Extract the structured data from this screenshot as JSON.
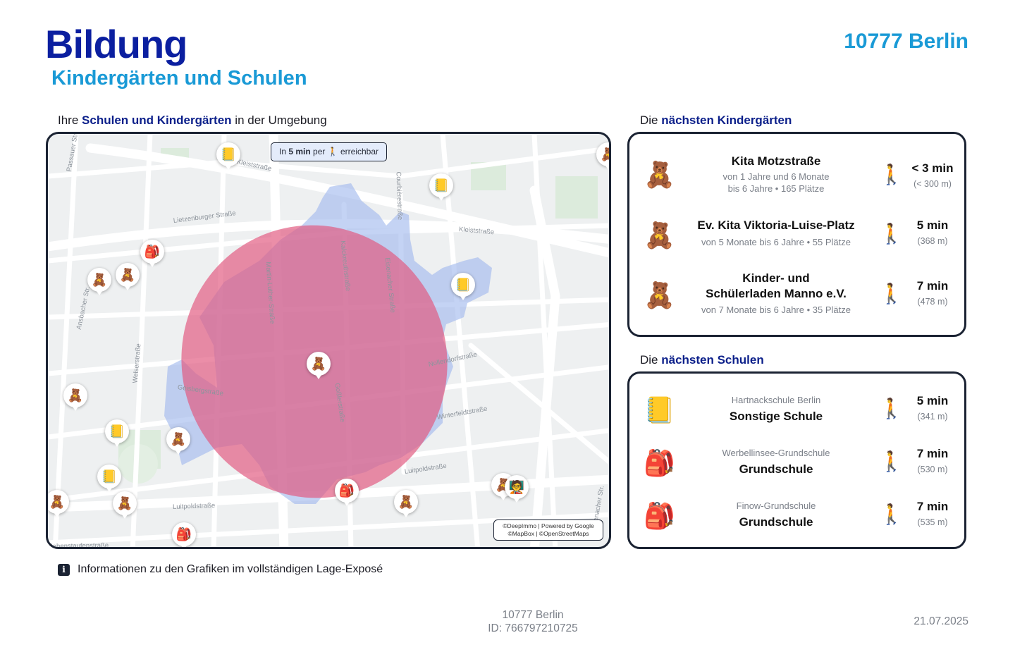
{
  "header": {
    "title": "Bildung",
    "subtitle": "Kindergärten und Schulen",
    "city": "10777 Berlin"
  },
  "map_section": {
    "label_pre": "Ihre ",
    "label_bold": "Schulen und Kindergärten",
    "label_post": " in der Umgebung",
    "reach_pre": "In ",
    "reach_bold": "5 min",
    "reach_mid": " per ",
    "reach_post": " erreichbar",
    "attribution_line1": "©DeepImmo | Powered by Google",
    "attribution_line2": "©MapBox | ©OpenStreetMaps",
    "streets": [
      "Kleiststraße",
      "Lietzenburger Straße",
      "Kleiststraße",
      "Passauer Straße",
      "Courbièrestraße",
      "Martin-Luther-Straße",
      "Kalckreuthstraße",
      "Eisenacher Straße",
      "Ansbacher Str.",
      "Welserstraße",
      "Geisbergstraße",
      "Goßlerstraße",
      "Nollendorfstraße",
      "Winterfeldtstraße",
      "Luitpoldstraße",
      "Luitpoldstraße",
      "Hohenstaufenstraße",
      "Eisenacher Str."
    ]
  },
  "kindergartens": {
    "label_pre": "Die ",
    "label_bold": "nächsten Kindergärten",
    "items": [
      {
        "name": "Kita Motzstraße",
        "sub1": "von 1 Jahre und 6 Monate",
        "sub2": "bis 6 Jahre • 165 Plätze",
        "time": "< 3 min",
        "dist": "(< 300 m)"
      },
      {
        "name": "Ev. Kita Viktoria-Luise-Platz",
        "sub1": "von 5 Monate bis 6 Jahre • 55 Plätze",
        "time": "5 min",
        "dist": "(368 m)"
      },
      {
        "name1": "Kinder- und",
        "name2": "Schülerladen Manno e.V.",
        "sub1": "von 7 Monate bis 6 Jahre • 35 Plätze",
        "time": "7 min",
        "dist": "(478 m)"
      }
    ]
  },
  "schools": {
    "label_pre": "Die ",
    "label_bold": "nächsten Schulen",
    "items": [
      {
        "school": "Hartnackschule Berlin",
        "type": "Sonstige Schule",
        "time": "5 min",
        "dist": "(341 m)",
        "icon": "notebook-icon"
      },
      {
        "school": "Werbellinsee-Grundschule",
        "type": "Grundschule",
        "time": "7 min",
        "dist": "(530 m)",
        "icon": "backpack-icon"
      },
      {
        "school": "Finow-Grundschule",
        "type": "Grundschule",
        "time": "7 min",
        "dist": "(535 m)",
        "icon": "backpack-icon"
      }
    ]
  },
  "info_text": "Informationen zu den Grafiken im vollständigen Lage-Exposé",
  "footer": {
    "city": "10777 Berlin",
    "id": "ID: 766797210725",
    "date": "21.07.2025"
  },
  "colors": {
    "title": "#0b1fa0",
    "accent": "#1a9ad6",
    "isochrone_walk": "#9fb8ee",
    "isochrone_radius": "#e2587f",
    "border": "#1b2333"
  }
}
